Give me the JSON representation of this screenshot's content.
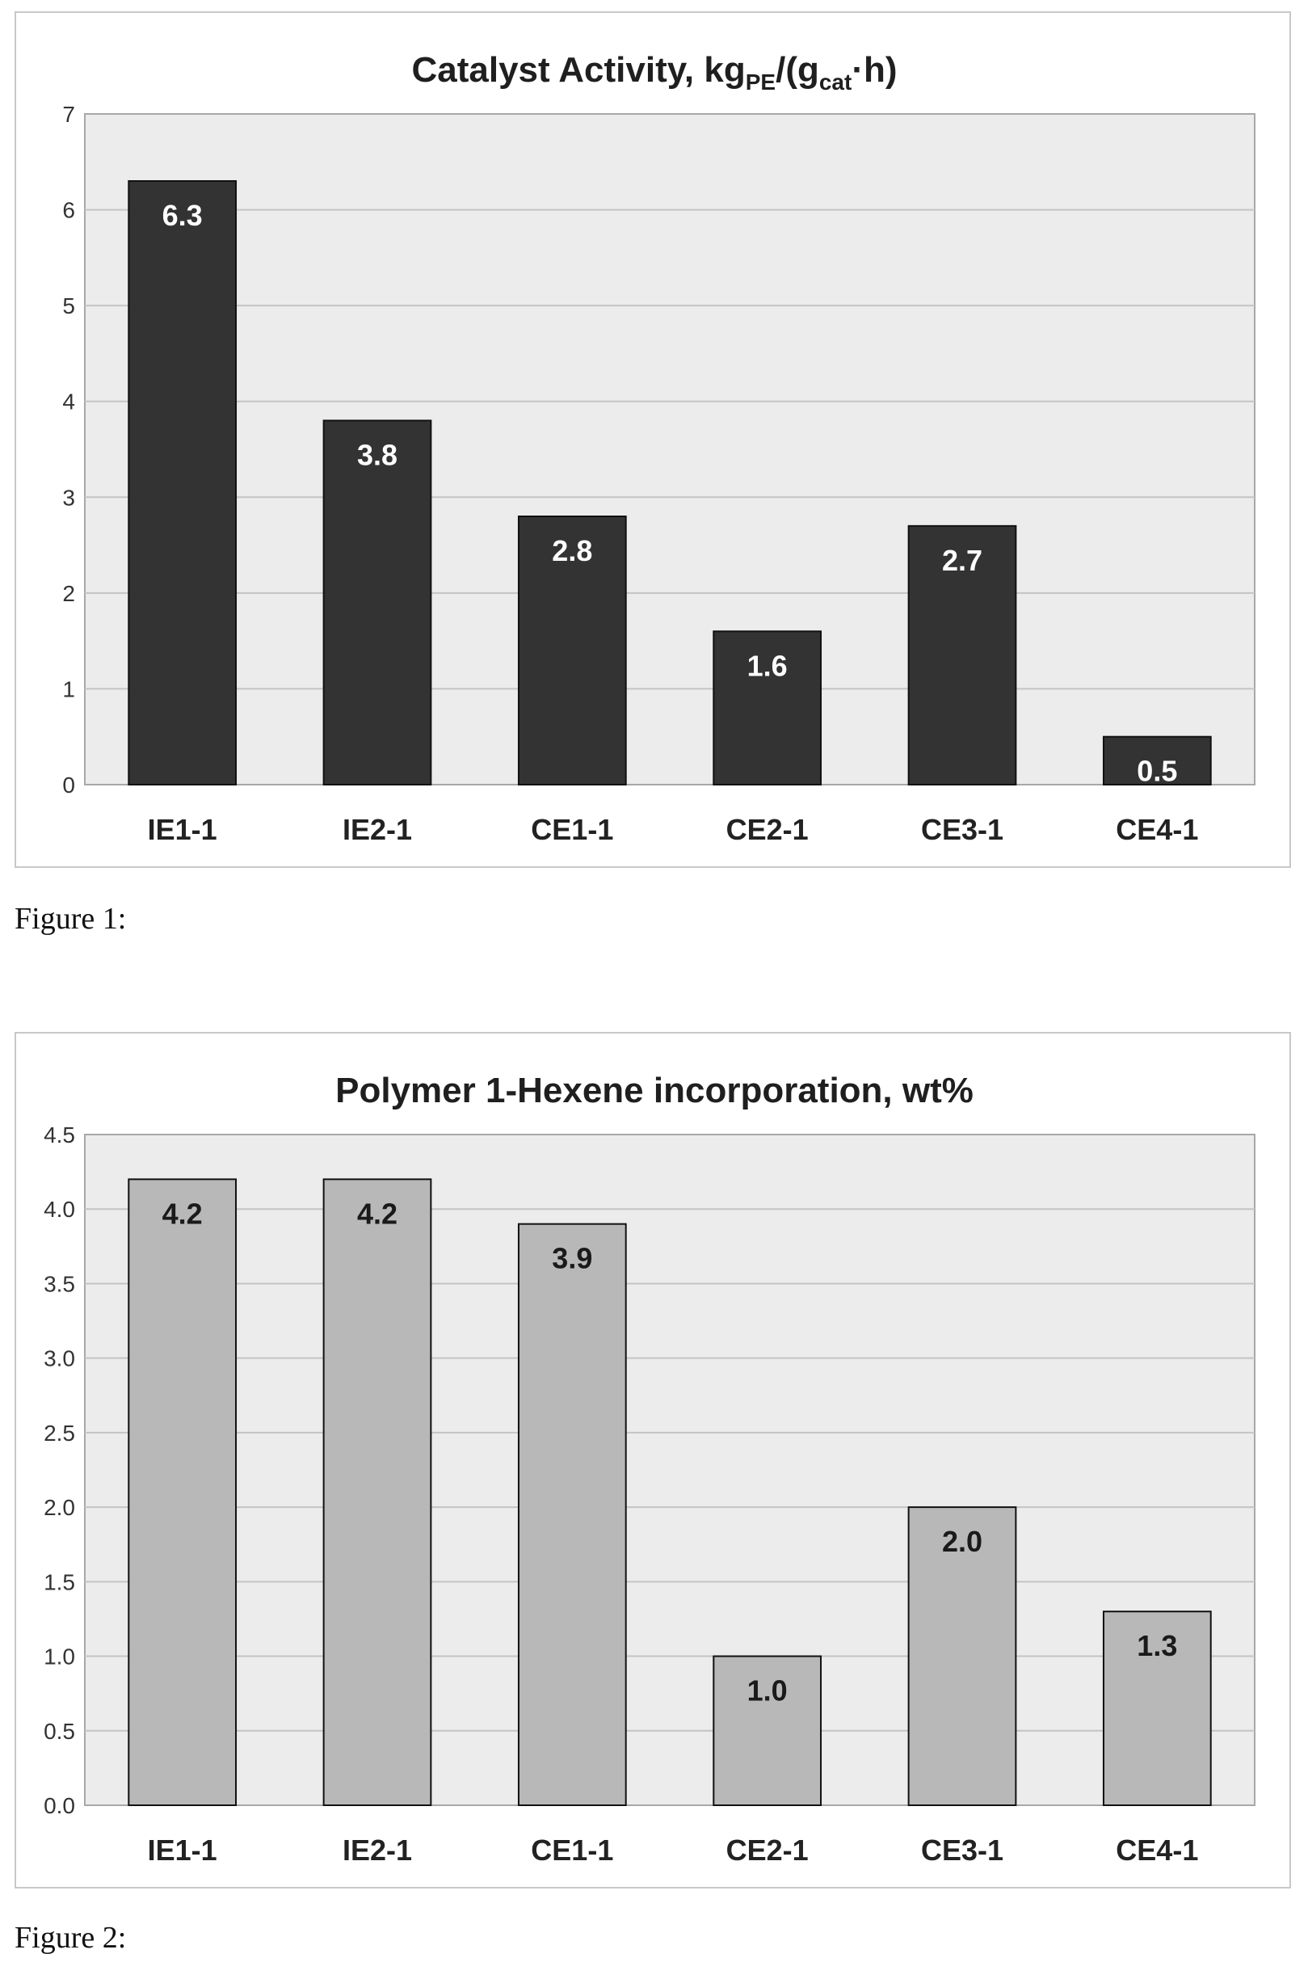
{
  "figures": [
    {
      "caption": "Figure 1:",
      "chart_data": {
        "type": "bar",
        "title": {
          "main": "Catalyst Activity, kg",
          "sub1": "PE",
          "mid": "/(g",
          "sub2": "cat",
          "end": "·h)"
        },
        "categories": [
          "IE1-1",
          "IE2-1",
          "CE1-1",
          "CE2-1",
          "CE3-1",
          "CE4-1"
        ],
        "values": [
          6.3,
          3.8,
          2.8,
          1.6,
          2.7,
          0.5
        ],
        "value_labels": [
          "6.3",
          "3.8",
          "2.8",
          "1.6",
          "2.7",
          "0.5"
        ],
        "yticks": [
          "0",
          "1",
          "2",
          "3",
          "4",
          "5",
          "6",
          "7"
        ],
        "ylim": [
          0,
          7
        ],
        "ystep": 1,
        "grid": true,
        "bar_color": "#333333",
        "label_color": "#ffffff",
        "plot_bg": "#ececec"
      }
    },
    {
      "caption": "Figure 2:",
      "chart_data": {
        "type": "bar",
        "title": {
          "main": "Polymer 1-Hexene incorporation, wt%"
        },
        "categories": [
          "IE1-1",
          "IE2-1",
          "CE1-1",
          "CE2-1",
          "CE3-1",
          "CE4-1"
        ],
        "values": [
          4.2,
          4.2,
          3.9,
          1.0,
          2.0,
          1.3
        ],
        "value_labels": [
          "4.2",
          "4.2",
          "3.9",
          "1.0",
          "2.0",
          "1.3"
        ],
        "yticks": [
          "0.0",
          "0.5",
          "1.0",
          "1.5",
          "2.0",
          "2.5",
          "3.0",
          "3.5",
          "4.0",
          "4.5"
        ],
        "ylim": [
          0,
          4.5
        ],
        "ystep": 0.5,
        "grid": true,
        "bar_color": "#b8b8b8",
        "label_color": "#1a1a1a",
        "plot_bg": "#ececec"
      }
    }
  ]
}
